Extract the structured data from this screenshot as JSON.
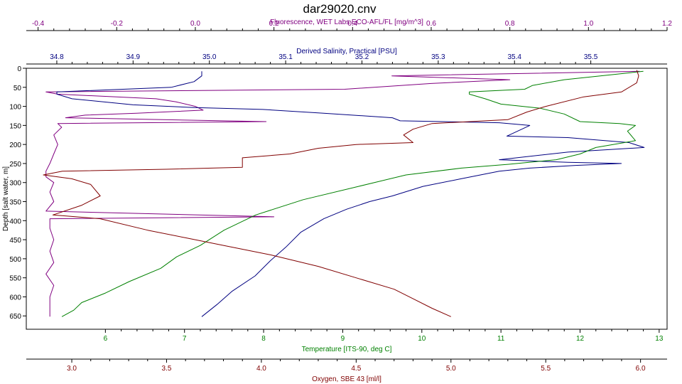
{
  "chart_data": {
    "type": "line",
    "title": "dar29020.cnv",
    "grid": false,
    "y_axis": {
      "label": "Depth [salt water, m]",
      "range": [
        0,
        685
      ],
      "ticks": [
        "0",
        "50",
        "100",
        "150",
        "200",
        "250",
        "300",
        "350",
        "400",
        "450",
        "500",
        "550",
        "600",
        "650"
      ],
      "inverted": true
    },
    "axes": [
      {
        "id": "fluorescence",
        "position": "top",
        "label": "Fluorescence, WET Labs ECO-AFL/FL [mg/m^3]",
        "color": "#800080",
        "range": [
          -0.43,
          1.2
        ],
        "ticks": [
          "-0.4",
          "-0.2",
          "0.0",
          "0.2",
          "0.4",
          "0.6",
          "0.8",
          "1.0",
          "1.2"
        ]
      },
      {
        "id": "salinity",
        "position": "top",
        "label": "Derived Salinity, Practical [PSU]",
        "color": "#000080",
        "range": [
          34.76,
          35.6
        ],
        "ticks": [
          "34.8",
          "34.9",
          "35.0",
          "35.1",
          "35.2",
          "35.3",
          "35.4",
          "35.5"
        ]
      },
      {
        "id": "temperature",
        "position": "bottom",
        "label": "Temperature [ITS-90, deg C]",
        "color": "#008000",
        "range": [
          5.0,
          13.1
        ],
        "ticks": [
          "6",
          "7",
          "8",
          "9",
          "10",
          "11",
          "12",
          "13"
        ]
      },
      {
        "id": "oxygen",
        "position": "bottom",
        "label": "Oxygen, SBE 43 [ml/l]",
        "color": "#800000",
        "range": [
          2.76,
          6.14
        ],
        "ticks": [
          "3.0",
          "3.5",
          "4.0",
          "4.5",
          "5.0",
          "5.5",
          "6.0"
        ]
      }
    ],
    "series": [
      {
        "axis": "fluorescence",
        "color": "#800080",
        "points": [
          [
            1.13,
            8
          ],
          [
            0.5,
            20
          ],
          [
            0.8,
            30
          ],
          [
            0.6,
            40
          ],
          [
            0.38,
            55
          ],
          [
            -0.38,
            62
          ],
          [
            -0.35,
            68
          ],
          [
            -0.1,
            80
          ],
          [
            -0.05,
            88
          ],
          [
            0.0,
            100
          ],
          [
            0.02,
            110
          ],
          [
            -0.15,
            118
          ],
          [
            -0.28,
            123
          ],
          [
            -0.33,
            130
          ],
          [
            0.18,
            140
          ],
          [
            -0.35,
            145
          ],
          [
            -0.34,
            155
          ],
          [
            -0.36,
            175
          ],
          [
            -0.35,
            200
          ],
          [
            -0.36,
            225
          ],
          [
            -0.37,
            250
          ],
          [
            -0.38,
            270
          ],
          [
            -0.38,
            285
          ],
          [
            -0.36,
            300
          ],
          [
            -0.37,
            325
          ],
          [
            -0.36,
            350
          ],
          [
            -0.38,
            375
          ],
          [
            0.2,
            390
          ],
          [
            -0.37,
            395
          ],
          [
            -0.37,
            420
          ],
          [
            -0.36,
            450
          ],
          [
            -0.37,
            480
          ],
          [
            -0.36,
            510
          ],
          [
            -0.38,
            540
          ],
          [
            -0.36,
            570
          ],
          [
            -0.37,
            600
          ],
          [
            -0.37,
            630
          ],
          [
            -0.37,
            652
          ]
        ]
      },
      {
        "axis": "salinity",
        "color": "#000080",
        "points": [
          [
            34.99,
            8
          ],
          [
            34.99,
            20
          ],
          [
            34.98,
            35
          ],
          [
            34.95,
            50
          ],
          [
            34.8,
            62
          ],
          [
            34.8,
            68
          ],
          [
            34.82,
            80
          ],
          [
            34.9,
            96
          ],
          [
            34.98,
            103
          ],
          [
            35.07,
            108
          ],
          [
            35.15,
            118
          ],
          [
            35.24,
            130
          ],
          [
            35.25,
            138
          ],
          [
            35.38,
            143
          ],
          [
            35.42,
            150
          ],
          [
            35.39,
            178
          ],
          [
            35.47,
            182
          ],
          [
            35.55,
            195
          ],
          [
            35.57,
            208
          ],
          [
            35.47,
            220
          ],
          [
            35.38,
            240
          ],
          [
            35.47,
            247
          ],
          [
            35.54,
            250
          ],
          [
            35.48,
            255
          ],
          [
            35.42,
            262
          ],
          [
            35.38,
            270
          ],
          [
            35.33,
            290
          ],
          [
            35.28,
            310
          ],
          [
            35.24,
            335
          ],
          [
            35.21,
            350
          ],
          [
            35.18,
            370
          ],
          [
            35.15,
            395
          ],
          [
            35.12,
            430
          ],
          [
            35.1,
            470
          ],
          [
            35.08,
            505
          ],
          [
            35.06,
            545
          ],
          [
            35.03,
            585
          ],
          [
            35.01,
            620
          ],
          [
            34.99,
            652
          ]
        ]
      },
      {
        "axis": "temperature",
        "color": "#008000",
        "points": [
          [
            12.8,
            8
          ],
          [
            11.8,
            30
          ],
          [
            11.4,
            45
          ],
          [
            11.3,
            55
          ],
          [
            10.6,
            62
          ],
          [
            10.6,
            68
          ],
          [
            10.8,
            80
          ],
          [
            11.0,
            94
          ],
          [
            11.5,
            105
          ],
          [
            11.8,
            120
          ],
          [
            12.0,
            140
          ],
          [
            12.5,
            145
          ],
          [
            12.7,
            150
          ],
          [
            12.6,
            165
          ],
          [
            12.7,
            190
          ],
          [
            12.2,
            208
          ],
          [
            12.0,
            225
          ],
          [
            11.7,
            240
          ],
          [
            11.1,
            252
          ],
          [
            10.5,
            262
          ],
          [
            9.8,
            280
          ],
          [
            9.2,
            310
          ],
          [
            8.5,
            345
          ],
          [
            7.9,
            385
          ],
          [
            7.5,
            425
          ],
          [
            7.2,
            465
          ],
          [
            6.9,
            495
          ],
          [
            6.7,
            525
          ],
          [
            6.3,
            560
          ],
          [
            6.0,
            590
          ],
          [
            5.7,
            615
          ],
          [
            5.6,
            635
          ],
          [
            5.45,
            652
          ]
        ]
      },
      {
        "axis": "oxygen",
        "color": "#800000",
        "points": [
          [
            5.98,
            5
          ],
          [
            5.99,
            20
          ],
          [
            5.98,
            38
          ],
          [
            5.9,
            62
          ],
          [
            5.7,
            75
          ],
          [
            5.5,
            100
          ],
          [
            5.4,
            115
          ],
          [
            5.3,
            135
          ],
          [
            5.1,
            140
          ],
          [
            4.9,
            145
          ],
          [
            4.8,
            160
          ],
          [
            4.75,
            175
          ],
          [
            4.8,
            195
          ],
          [
            4.62,
            198
          ],
          [
            4.5,
            200
          ],
          [
            4.3,
            210
          ],
          [
            4.15,
            225
          ],
          [
            3.9,
            235
          ],
          [
            3.9,
            260
          ],
          [
            3.5,
            265
          ],
          [
            2.95,
            270
          ],
          [
            2.85,
            280
          ],
          [
            3.0,
            290
          ],
          [
            3.1,
            305
          ],
          [
            3.15,
            335
          ],
          [
            3.05,
            360
          ],
          [
            2.9,
            385
          ],
          [
            3.15,
            395
          ],
          [
            3.4,
            425
          ],
          [
            3.6,
            445
          ],
          [
            3.8,
            465
          ],
          [
            4.05,
            490
          ],
          [
            4.3,
            520
          ],
          [
            4.5,
            550
          ],
          [
            4.7,
            580
          ],
          [
            4.8,
            605
          ],
          [
            4.9,
            630
          ],
          [
            5.0,
            652
          ]
        ]
      }
    ]
  }
}
